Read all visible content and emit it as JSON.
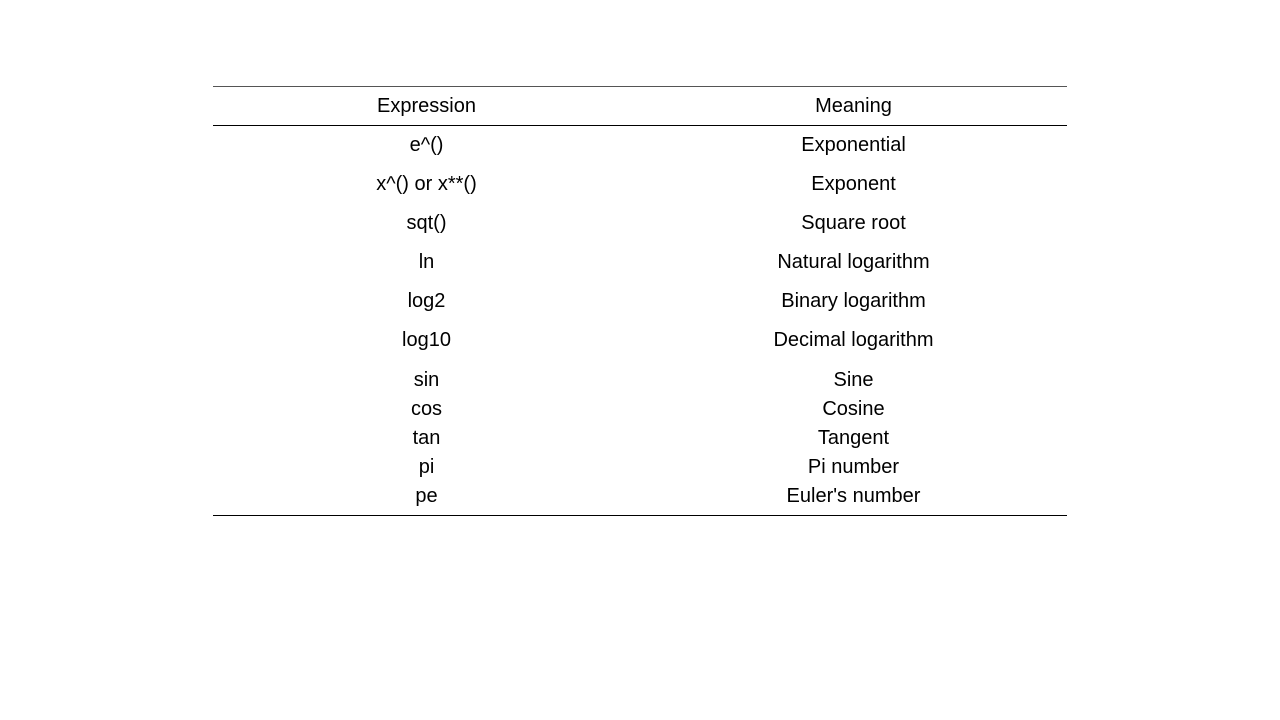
{
  "table": {
    "headers": [
      "Expression",
      "Meaning"
    ],
    "rows": [
      [
        "e^()",
        "Exponential"
      ],
      [
        "x^() or x**()",
        "Exponent"
      ],
      [
        "sqt()",
        "Square root"
      ],
      [
        "ln",
        "Natural logarithm"
      ],
      [
        "log2",
        "Binary logarithm"
      ],
      [
        "log10",
        "Decimal logarithm"
      ]
    ],
    "grouped_row": {
      "expressions": [
        "sin",
        "cos",
        "tan",
        "pi",
        "pe"
      ],
      "meanings": [
        "Sine",
        "Cosine",
        "Tangent",
        "Pi number",
        "Euler's number"
      ]
    }
  }
}
